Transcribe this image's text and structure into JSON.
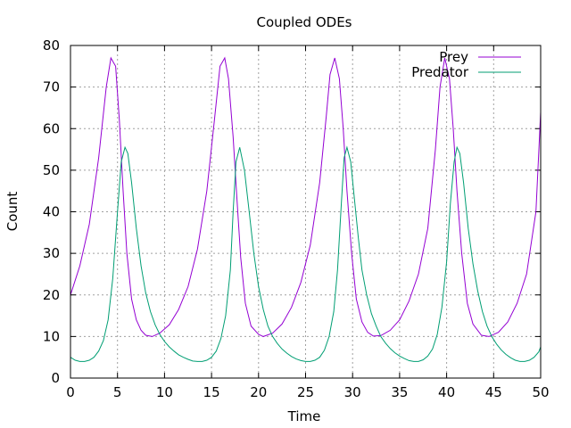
{
  "chart_data": {
    "type": "line",
    "title": "Coupled ODEs",
    "xlabel": "Time",
    "ylabel": "Count",
    "xlim": [
      0,
      50
    ],
    "ylim": [
      0,
      80
    ],
    "xticks": [
      0,
      5,
      10,
      15,
      20,
      25,
      30,
      35,
      40,
      45,
      50
    ],
    "yticks": [
      0,
      10,
      20,
      30,
      40,
      50,
      60,
      70,
      80
    ],
    "grid": true,
    "legend_position": "top-right",
    "series": [
      {
        "name": "Prey",
        "color": "#9400d3",
        "x": [
          0,
          1,
          2,
          3,
          3.8,
          4.3,
          4.8,
          5.2,
          5.6,
          6.0,
          6.5,
          7.0,
          7.5,
          8.0,
          8.7,
          9.5,
          10.5,
          11.5,
          12.5,
          13.5,
          14.5,
          15.3,
          15.9,
          16.4,
          16.8,
          17.3,
          17.7,
          18.1,
          18.6,
          19.2,
          20.0,
          20.5,
          21.5,
          22.5,
          23.5,
          24.5,
          25.5,
          26.5,
          27.2,
          27.6,
          28.1,
          28.6,
          29.0,
          29.4,
          29.9,
          30.4,
          31.0,
          31.6,
          32.2,
          33.0,
          34.0,
          35.0,
          36.0,
          37.0,
          38.0,
          38.8,
          39.3,
          39.8,
          40.3,
          40.7,
          41.1,
          41.6,
          42.2,
          42.8,
          43.7,
          44.5,
          45.5,
          46.5,
          47.5,
          48.5,
          49.5,
          50.0
        ],
        "y": [
          20,
          27,
          37,
          53,
          70,
          77,
          75,
          62,
          45,
          30,
          19,
          14,
          11.5,
          10.3,
          10,
          10.8,
          12.8,
          16.5,
          22,
          31,
          45,
          62,
          75,
          77,
          72,
          58,
          43,
          29,
          18,
          12.5,
          10.5,
          10,
          10.8,
          13,
          17,
          23,
          32,
          47,
          63,
          73,
          77,
          72,
          60,
          45,
          30,
          19,
          13.5,
          11,
          10.1,
          10.2,
          11.5,
          14,
          18.5,
          25,
          36,
          55,
          70,
          77,
          72,
          60,
          45,
          30,
          18,
          13,
          10.3,
          10,
          11,
          13.5,
          18,
          25,
          40,
          64
        ]
      },
      {
        "name": "Predator",
        "color": "#009e73",
        "x": [
          0,
          0.5,
          1.0,
          1.5,
          2.0,
          2.5,
          3.0,
          3.5,
          4.0,
          4.5,
          5.0,
          5.4,
          5.8,
          6.1,
          6.5,
          7.0,
          7.5,
          8.0,
          8.5,
          9.0,
          9.5,
          10.0,
          10.5,
          11.0,
          11.5,
          12.0,
          12.5,
          13.0,
          13.5,
          14.0,
          14.5,
          15.0,
          15.5,
          16.0,
          16.5,
          17.0,
          17.3,
          17.6,
          18.0,
          18.5,
          19.0,
          19.5,
          20.0,
          20.5,
          21.0,
          21.5,
          22.0,
          22.5,
          23.0,
          23.5,
          24.0,
          24.5,
          25.0,
          25.5,
          26.0,
          26.5,
          27.0,
          27.5,
          28.0,
          28.4,
          28.8,
          29.1,
          29.4,
          29.8,
          30.2,
          30.6,
          31.0,
          31.5,
          32.0,
          32.5,
          33.0,
          33.5,
          34.0,
          34.5,
          35.0,
          35.5,
          36.0,
          36.5,
          37.0,
          37.5,
          38.0,
          38.5,
          39.0,
          39.5,
          40.0,
          40.4,
          40.8,
          41.1,
          41.4,
          41.8,
          42.3,
          42.8,
          43.3,
          43.8,
          44.3,
          44.8,
          45.3,
          45.8,
          46.3,
          46.8,
          47.3,
          47.8,
          48.3,
          48.8,
          49.3,
          49.8,
          50.0
        ],
        "y": [
          5,
          4.3,
          4,
          4,
          4.3,
          5,
          6.5,
          9,
          14,
          24,
          40,
          52,
          55.5,
          54,
          47,
          36,
          27,
          20.5,
          16,
          12.8,
          10.5,
          8.8,
          7.5,
          6.5,
          5.6,
          5,
          4.5,
          4.1,
          4,
          4,
          4.3,
          5,
          6.5,
          9.5,
          15,
          26,
          40,
          52,
          55.5,
          50,
          40,
          30,
          22,
          16.5,
          12.5,
          10,
          8.3,
          7,
          6,
          5.2,
          4.6,
          4.2,
          4,
          4,
          4.3,
          5,
          6.7,
          10,
          16,
          26,
          42,
          53,
          55.5,
          52,
          43,
          34,
          26,
          20,
          15.5,
          12.5,
          10,
          8.4,
          7.1,
          6.1,
          5.3,
          4.7,
          4.2,
          4,
          4,
          4.4,
          5.3,
          7,
          10.5,
          17,
          28,
          42,
          52,
          55.5,
          54,
          47,
          36,
          27.5,
          21,
          16,
          12.5,
          10,
          8.2,
          6.8,
          5.7,
          4.9,
          4.3,
          4,
          4,
          4.3,
          5,
          6.3,
          7.5
        ]
      }
    ]
  }
}
